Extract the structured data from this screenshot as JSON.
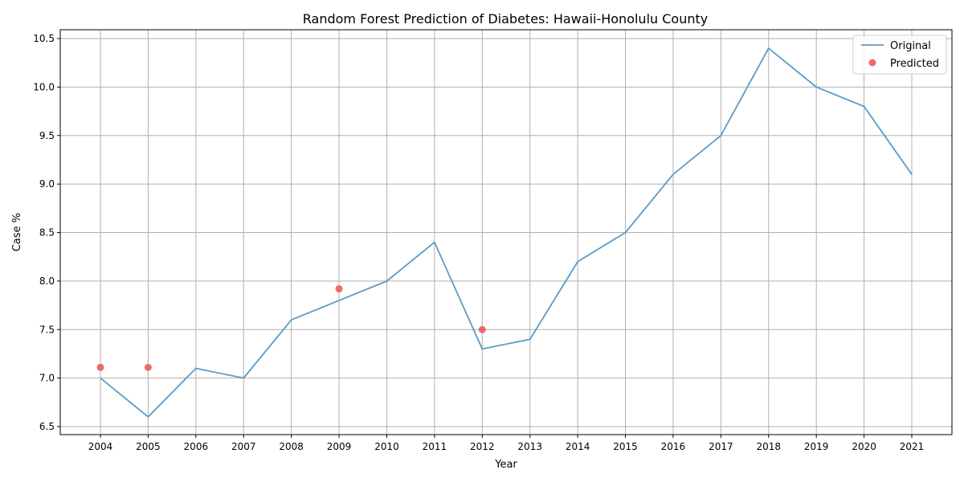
{
  "chart_data": {
    "type": "line",
    "title": "Random Forest Prediction of Diabetes: Hawaii-Honolulu County",
    "xlabel": "Year",
    "ylabel": "Case %",
    "x": [
      "2004",
      "2005",
      "2006",
      "2007",
      "2008",
      "2009",
      "2010",
      "2011",
      "2012",
      "2013",
      "2014",
      "2015",
      "2016",
      "2017",
      "2018",
      "2019",
      "2020",
      "2021"
    ],
    "ylim": [
      6.5,
      10.5
    ],
    "yticks": [
      "6.5",
      "7.0",
      "7.5",
      "8.0",
      "8.5",
      "9.0",
      "9.5",
      "10.0",
      "10.5"
    ],
    "grid": true,
    "legend_position": "top-right",
    "series": [
      {
        "name": "Original",
        "kind": "line",
        "color": "#5b9bc6",
        "values": [
          7.0,
          6.6,
          7.1,
          7.0,
          7.6,
          7.8,
          8.0,
          8.4,
          7.3,
          7.4,
          8.2,
          8.5,
          9.1,
          9.5,
          10.4,
          10.0,
          9.8,
          9.1
        ]
      },
      {
        "name": "Predicted",
        "kind": "scatter",
        "color": "#f0595b",
        "points": [
          {
            "x": "2004",
            "y": 7.11
          },
          {
            "x": "2005",
            "y": 7.11
          },
          {
            "x": "2009",
            "y": 7.92
          },
          {
            "x": "2012",
            "y": 7.5
          }
        ]
      }
    ]
  }
}
